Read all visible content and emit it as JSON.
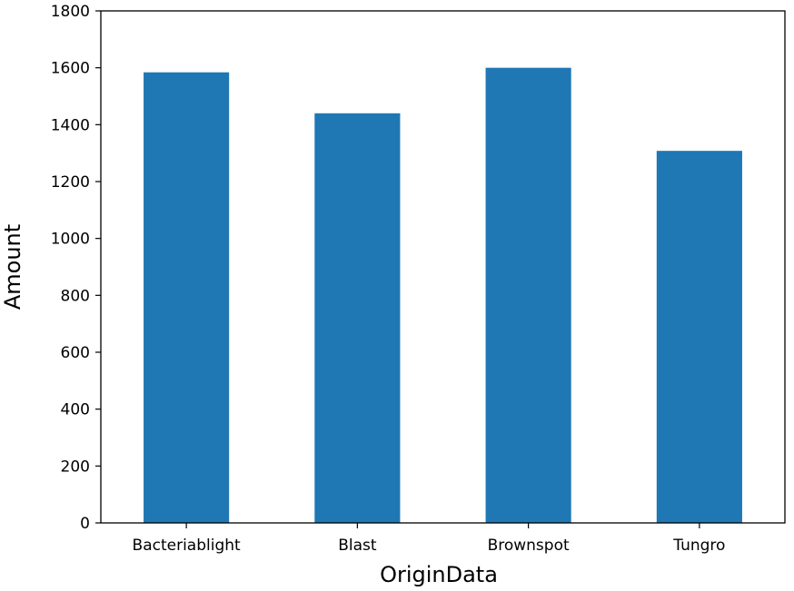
{
  "chart_data": {
    "type": "bar",
    "categories": [
      "Bacteriablight",
      "Blast",
      "Brownspot",
      "Tungro"
    ],
    "values": [
      1584,
      1440,
      1600,
      1308
    ],
    "xlabel": "OriginData",
    "ylabel": "Amount",
    "ylim": [
      0,
      1800
    ],
    "yticks": [
      0,
      200,
      400,
      600,
      800,
      1000,
      1200,
      1400,
      1600,
      1800
    ],
    "bar_color": "#1f77b4",
    "grid": false
  }
}
